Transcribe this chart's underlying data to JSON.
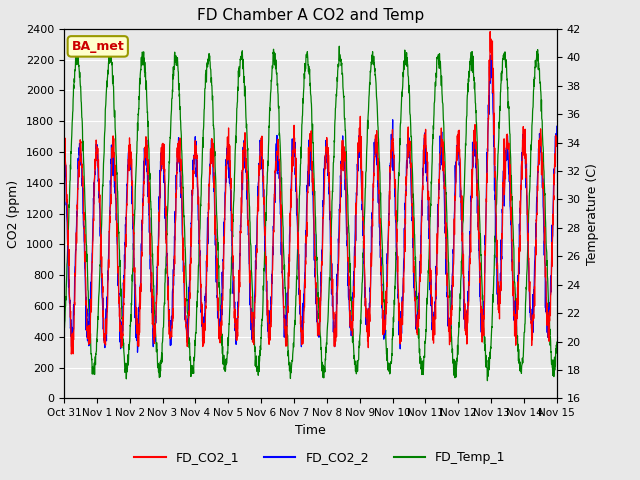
{
  "title": "FD Chamber A CO2 and Temp",
  "xlabel": "Time",
  "ylabel_left": "CO2 (ppm)",
  "ylabel_right": "Temperature (C)",
  "ylim_left": [
    0,
    2400
  ],
  "ylim_right": [
    16,
    42
  ],
  "yticks_left": [
    0,
    200,
    400,
    600,
    800,
    1000,
    1200,
    1400,
    1600,
    1800,
    2000,
    2200,
    2400
  ],
  "yticks_right": [
    16,
    18,
    20,
    22,
    24,
    26,
    28,
    30,
    32,
    34,
    36,
    38,
    40,
    42
  ],
  "xtick_labels": [
    "Oct 31",
    "Nov 1",
    "Nov 2",
    "Nov 3",
    "Nov 4",
    "Nov 5",
    "Nov 6",
    "Nov 7",
    "Nov 8",
    "Nov 9",
    "Nov 10",
    "Nov 11",
    "Nov 12",
    "Nov 13",
    "Nov 14",
    "Nov 15"
  ],
  "background_color": "#e8e8e8",
  "plot_bg_color": "#e8e8e8",
  "legend_labels": [
    "FD_CO2_1",
    "FD_CO2_2",
    "FD_Temp_1"
  ],
  "annotation_text": "BA_met",
  "annotation_color": "#cc0000",
  "annotation_bg": "#ffffcc",
  "annotation_edge": "#999900",
  "days": 15,
  "co2_base": 1000,
  "co2_amp": 620,
  "co2_period": 0.5,
  "temp_base": 29,
  "temp_amp": 11,
  "temp_period": 1.0,
  "title_fontsize": 11,
  "label_fontsize": 9,
  "tick_fontsize": 8,
  "xtick_fontsize": 7.5,
  "linewidth": 0.9
}
